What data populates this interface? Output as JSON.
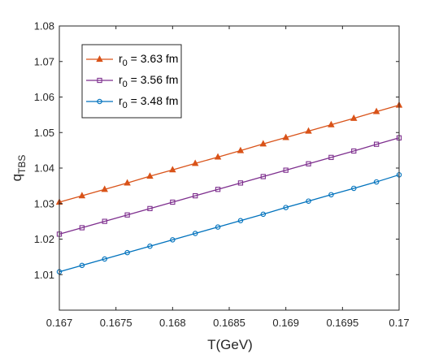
{
  "chart_data": {
    "type": "line",
    "xlabel": "T(GeV)",
    "ylabel": {
      "main": "q",
      "sub": "TBS"
    },
    "xlim": [
      0.167,
      0.17
    ],
    "ylim": [
      1.0,
      1.08
    ],
    "xticks": [
      0.167,
      0.1675,
      0.168,
      0.1685,
      0.169,
      0.1695,
      0.17
    ],
    "xtick_labels": [
      "0.167",
      "0.1675",
      "0.168",
      "0.1685",
      "0.169",
      "0.1695",
      "0.17"
    ],
    "yticks": [
      1.01,
      1.02,
      1.03,
      1.04,
      1.05,
      1.06,
      1.07,
      1.08
    ],
    "ytick_labels": [
      "1.01",
      "1.02",
      "1.03",
      "1.04",
      "1.05",
      "1.06",
      "1.07",
      "1.08"
    ],
    "grid": false,
    "legend_position": "top-left",
    "x": [
      0.167,
      0.1672,
      0.1674,
      0.1676,
      0.1678,
      0.168,
      0.1682,
      0.1684,
      0.1686,
      0.1688,
      0.169,
      0.1692,
      0.1694,
      0.1696,
      0.1698,
      0.17
    ],
    "series": [
      {
        "name": "r0 = 3.63 fm",
        "legend": {
          "pre": "r",
          "sub": "0",
          "post": " = 3.63 fm"
        },
        "color": "#d95319",
        "marker": "triangle",
        "values": [
          1.0304,
          1.0322,
          1.034,
          1.0358,
          1.0377,
          1.0395,
          1.0413,
          1.0431,
          1.0449,
          1.0468,
          1.0486,
          1.0504,
          1.0522,
          1.054,
          1.0559,
          1.0577
        ]
      },
      {
        "name": "r0 = 3.56 fm",
        "legend": {
          "pre": "r",
          "sub": "0",
          "post": " = 3.56 fm"
        },
        "color": "#7e2f8e",
        "marker": "square",
        "values": [
          1.0214,
          1.0232,
          1.025,
          1.0268,
          1.0286,
          1.0304,
          1.0322,
          1.034,
          1.0358,
          1.0376,
          1.0394,
          1.0412,
          1.043,
          1.0448,
          1.0467,
          1.0485
        ]
      },
      {
        "name": "r0 = 3.48 fm",
        "legend": {
          "pre": "r",
          "sub": "0",
          "post": " = 3.48 fm"
        },
        "color": "#0072bd",
        "marker": "circle",
        "values": [
          1.0108,
          1.0126,
          1.0144,
          1.0162,
          1.018,
          1.0198,
          1.0216,
          1.0234,
          1.0252,
          1.027,
          1.0289,
          1.0307,
          1.0325,
          1.0343,
          1.0361,
          1.0381
        ]
      }
    ]
  }
}
